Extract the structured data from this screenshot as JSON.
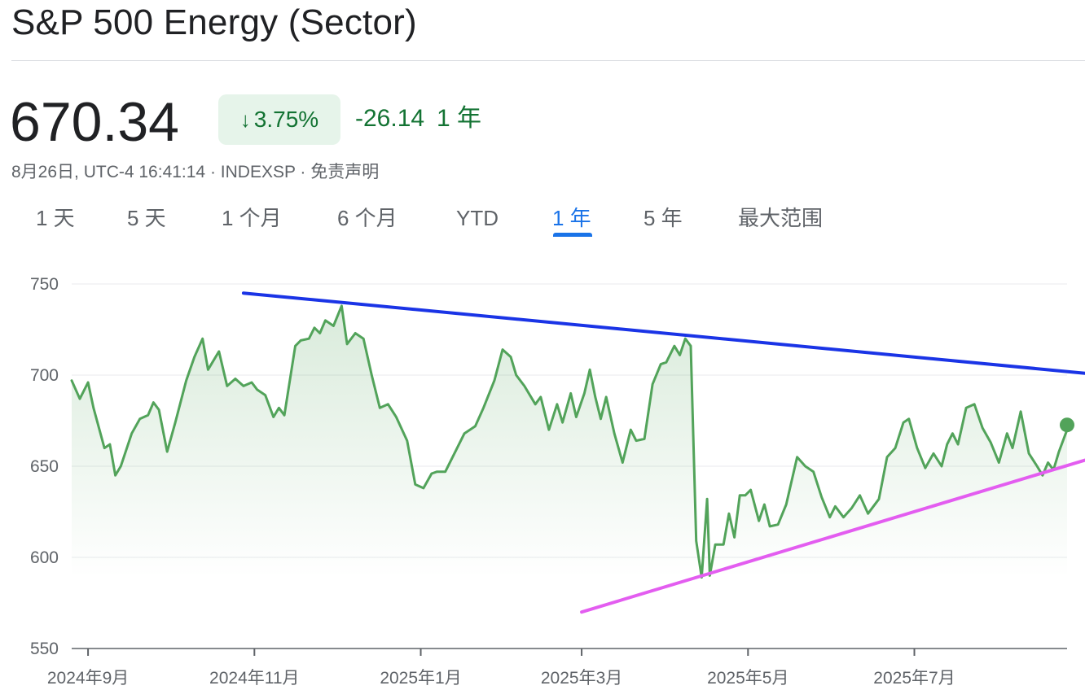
{
  "header": {
    "title": "S&P 500 Energy (Sector)",
    "price": "670.34",
    "change_pct": "3.75%",
    "change_arrow": "↓",
    "change_abs": "-26.14",
    "change_period": "1 年",
    "meta": "8月26日, UTC-4 16:41:14 · INDEXSP · 免责声明"
  },
  "tabs": [
    "1 天",
    "5 天",
    "1 个月",
    "6 个月",
    "YTD",
    "1 年",
    "5 年",
    "最大范围"
  ],
  "active_tab": "1 年",
  "colors": {
    "line": "#52a35a",
    "fill": "#52a35a",
    "upper_trendline": "#1a34e6",
    "lower_trendline": "#e35df0",
    "positive": "#137333",
    "active_tab": "#1a73e8"
  },
  "chart_data": {
    "type": "area",
    "ylim": [
      550,
      750
    ],
    "yticks": [
      550,
      600,
      650,
      700,
      750
    ],
    "xticks": [
      "2024年9月",
      "2024年11月",
      "2025年1月",
      "2025年3月",
      "2025年5月",
      "2025年7月"
    ],
    "xtick_dates": [
      "2024-09-01",
      "2024-11-01",
      "2025-01-01",
      "2025-03-01",
      "2025-05-01",
      "2025-07-01"
    ],
    "x_range": [
      "2024-08-26",
      "2025-08-26"
    ],
    "grid": true,
    "series": [
      {
        "values": [
          [
            "2024-08-26",
            697
          ],
          [
            "2024-08-29",
            687
          ],
          [
            "2024-09-01",
            696
          ],
          [
            "2024-09-03",
            682
          ],
          [
            "2024-09-07",
            660
          ],
          [
            "2024-09-09",
            662
          ],
          [
            "2024-09-11",
            645
          ],
          [
            "2024-09-13",
            650
          ],
          [
            "2024-09-17",
            668
          ],
          [
            "2024-09-20",
            676
          ],
          [
            "2024-09-23",
            678
          ],
          [
            "2024-09-25",
            685
          ],
          [
            "2024-09-27",
            681
          ],
          [
            "2024-09-30",
            658
          ],
          [
            "2024-10-03",
            674
          ],
          [
            "2024-10-07",
            697
          ],
          [
            "2024-10-10",
            710
          ],
          [
            "2024-10-13",
            720
          ],
          [
            "2024-10-15",
            703
          ],
          [
            "2024-10-19",
            713
          ],
          [
            "2024-10-22",
            694
          ],
          [
            "2024-10-25",
            698
          ],
          [
            "2024-10-28",
            694
          ],
          [
            "2024-10-31",
            696
          ],
          [
            "2024-11-02",
            692
          ],
          [
            "2024-11-05",
            689
          ],
          [
            "2024-11-08",
            677
          ],
          [
            "2024-11-10",
            682
          ],
          [
            "2024-11-12",
            678
          ],
          [
            "2024-11-16",
            716
          ],
          [
            "2024-11-18",
            719
          ],
          [
            "2024-11-21",
            720
          ],
          [
            "2024-11-23",
            726
          ],
          [
            "2024-11-25",
            723
          ],
          [
            "2024-11-27",
            730
          ],
          [
            "2024-11-30",
            727
          ],
          [
            "2024-12-03",
            738
          ],
          [
            "2024-12-05",
            717
          ],
          [
            "2024-12-08",
            723
          ],
          [
            "2024-12-11",
            720
          ],
          [
            "2024-12-14",
            700
          ],
          [
            "2024-12-17",
            682
          ],
          [
            "2024-12-20",
            684
          ],
          [
            "2024-12-23",
            677
          ],
          [
            "2024-12-27",
            664
          ],
          [
            "2024-12-30",
            640
          ],
          [
            "2025-01-02",
            638
          ],
          [
            "2025-01-05",
            646
          ],
          [
            "2025-01-07",
            647
          ],
          [
            "2025-01-10",
            647
          ],
          [
            "2025-01-14",
            659
          ],
          [
            "2025-01-17",
            668
          ],
          [
            "2025-01-21",
            672
          ],
          [
            "2025-01-24",
            682
          ],
          [
            "2025-01-28",
            697
          ],
          [
            "2025-01-31",
            714
          ],
          [
            "2025-02-03",
            710
          ],
          [
            "2025-02-05",
            700
          ],
          [
            "2025-02-08",
            694
          ],
          [
            "2025-02-12",
            684
          ],
          [
            "2025-02-14",
            688
          ],
          [
            "2025-02-17",
            670
          ],
          [
            "2025-02-20",
            684
          ],
          [
            "2025-02-22",
            674
          ],
          [
            "2025-02-25",
            690
          ],
          [
            "2025-02-27",
            677
          ],
          [
            "2025-03-02",
            690
          ],
          [
            "2025-03-04",
            703
          ],
          [
            "2025-03-06",
            688
          ],
          [
            "2025-03-08",
            676
          ],
          [
            "2025-03-10",
            688
          ],
          [
            "2025-03-13",
            668
          ],
          [
            "2025-03-16",
            652
          ],
          [
            "2025-03-19",
            670
          ],
          [
            "2025-03-21",
            664
          ],
          [
            "2025-03-24",
            665
          ],
          [
            "2025-03-27",
            695
          ],
          [
            "2025-03-30",
            706
          ],
          [
            "2025-04-01",
            707
          ],
          [
            "2025-04-04",
            716
          ],
          [
            "2025-04-06",
            711
          ],
          [
            "2025-04-08",
            720
          ],
          [
            "2025-04-10",
            716
          ],
          [
            "2025-04-12",
            609
          ],
          [
            "2025-04-14",
            589
          ],
          [
            "2025-04-16",
            632
          ],
          [
            "2025-04-17",
            590
          ],
          [
            "2025-04-19",
            607
          ],
          [
            "2025-04-22",
            607
          ],
          [
            "2025-04-24",
            624
          ],
          [
            "2025-04-26",
            611
          ],
          [
            "2025-04-28",
            634
          ],
          [
            "2025-04-30",
            634
          ],
          [
            "2025-05-02",
            637
          ],
          [
            "2025-05-05",
            620
          ],
          [
            "2025-05-07",
            629
          ],
          [
            "2025-05-09",
            617
          ],
          [
            "2025-05-12",
            618
          ],
          [
            "2025-05-15",
            629
          ],
          [
            "2025-05-19",
            655
          ],
          [
            "2025-05-22",
            650
          ],
          [
            "2025-05-25",
            647
          ],
          [
            "2025-05-28",
            633
          ],
          [
            "2025-05-31",
            622
          ],
          [
            "2025-06-02",
            628
          ],
          [
            "2025-06-05",
            622
          ],
          [
            "2025-06-08",
            627
          ],
          [
            "2025-06-11",
            634
          ],
          [
            "2025-06-14",
            624
          ],
          [
            "2025-06-18",
            632
          ],
          [
            "2025-06-21",
            655
          ],
          [
            "2025-06-24",
            660
          ],
          [
            "2025-06-27",
            674
          ],
          [
            "2025-06-29",
            676
          ],
          [
            "2025-07-02",
            660
          ],
          [
            "2025-07-05",
            649
          ],
          [
            "2025-07-08",
            657
          ],
          [
            "2025-07-11",
            650
          ],
          [
            "2025-07-13",
            662
          ],
          [
            "2025-07-15",
            668
          ],
          [
            "2025-07-17",
            662
          ],
          [
            "2025-07-20",
            682
          ],
          [
            "2025-07-23",
            684
          ],
          [
            "2025-07-26",
            671
          ],
          [
            "2025-07-29",
            663
          ],
          [
            "2025-08-01",
            652
          ],
          [
            "2025-08-04",
            668
          ],
          [
            "2025-08-06",
            660
          ],
          [
            "2025-08-09",
            680
          ],
          [
            "2025-08-12",
            657
          ],
          [
            "2025-08-15",
            650
          ],
          [
            "2025-08-17",
            645
          ],
          [
            "2025-08-19",
            652
          ],
          [
            "2025-08-21",
            648
          ],
          [
            "2025-08-23",
            658
          ],
          [
            "2025-08-26",
            670
          ]
        ]
      }
    ],
    "trendlines": [
      {
        "color": "upper",
        "from": [
          "2024-10-28",
          745
        ],
        "to": [
          "2025-08-26",
          701
        ]
      },
      {
        "color": "lower",
        "from": [
          "2025-03-01",
          570
        ],
        "to": [
          "2025-08-26",
          652
        ]
      }
    ],
    "end_marker": [
      "2025-08-26",
      670
    ]
  }
}
